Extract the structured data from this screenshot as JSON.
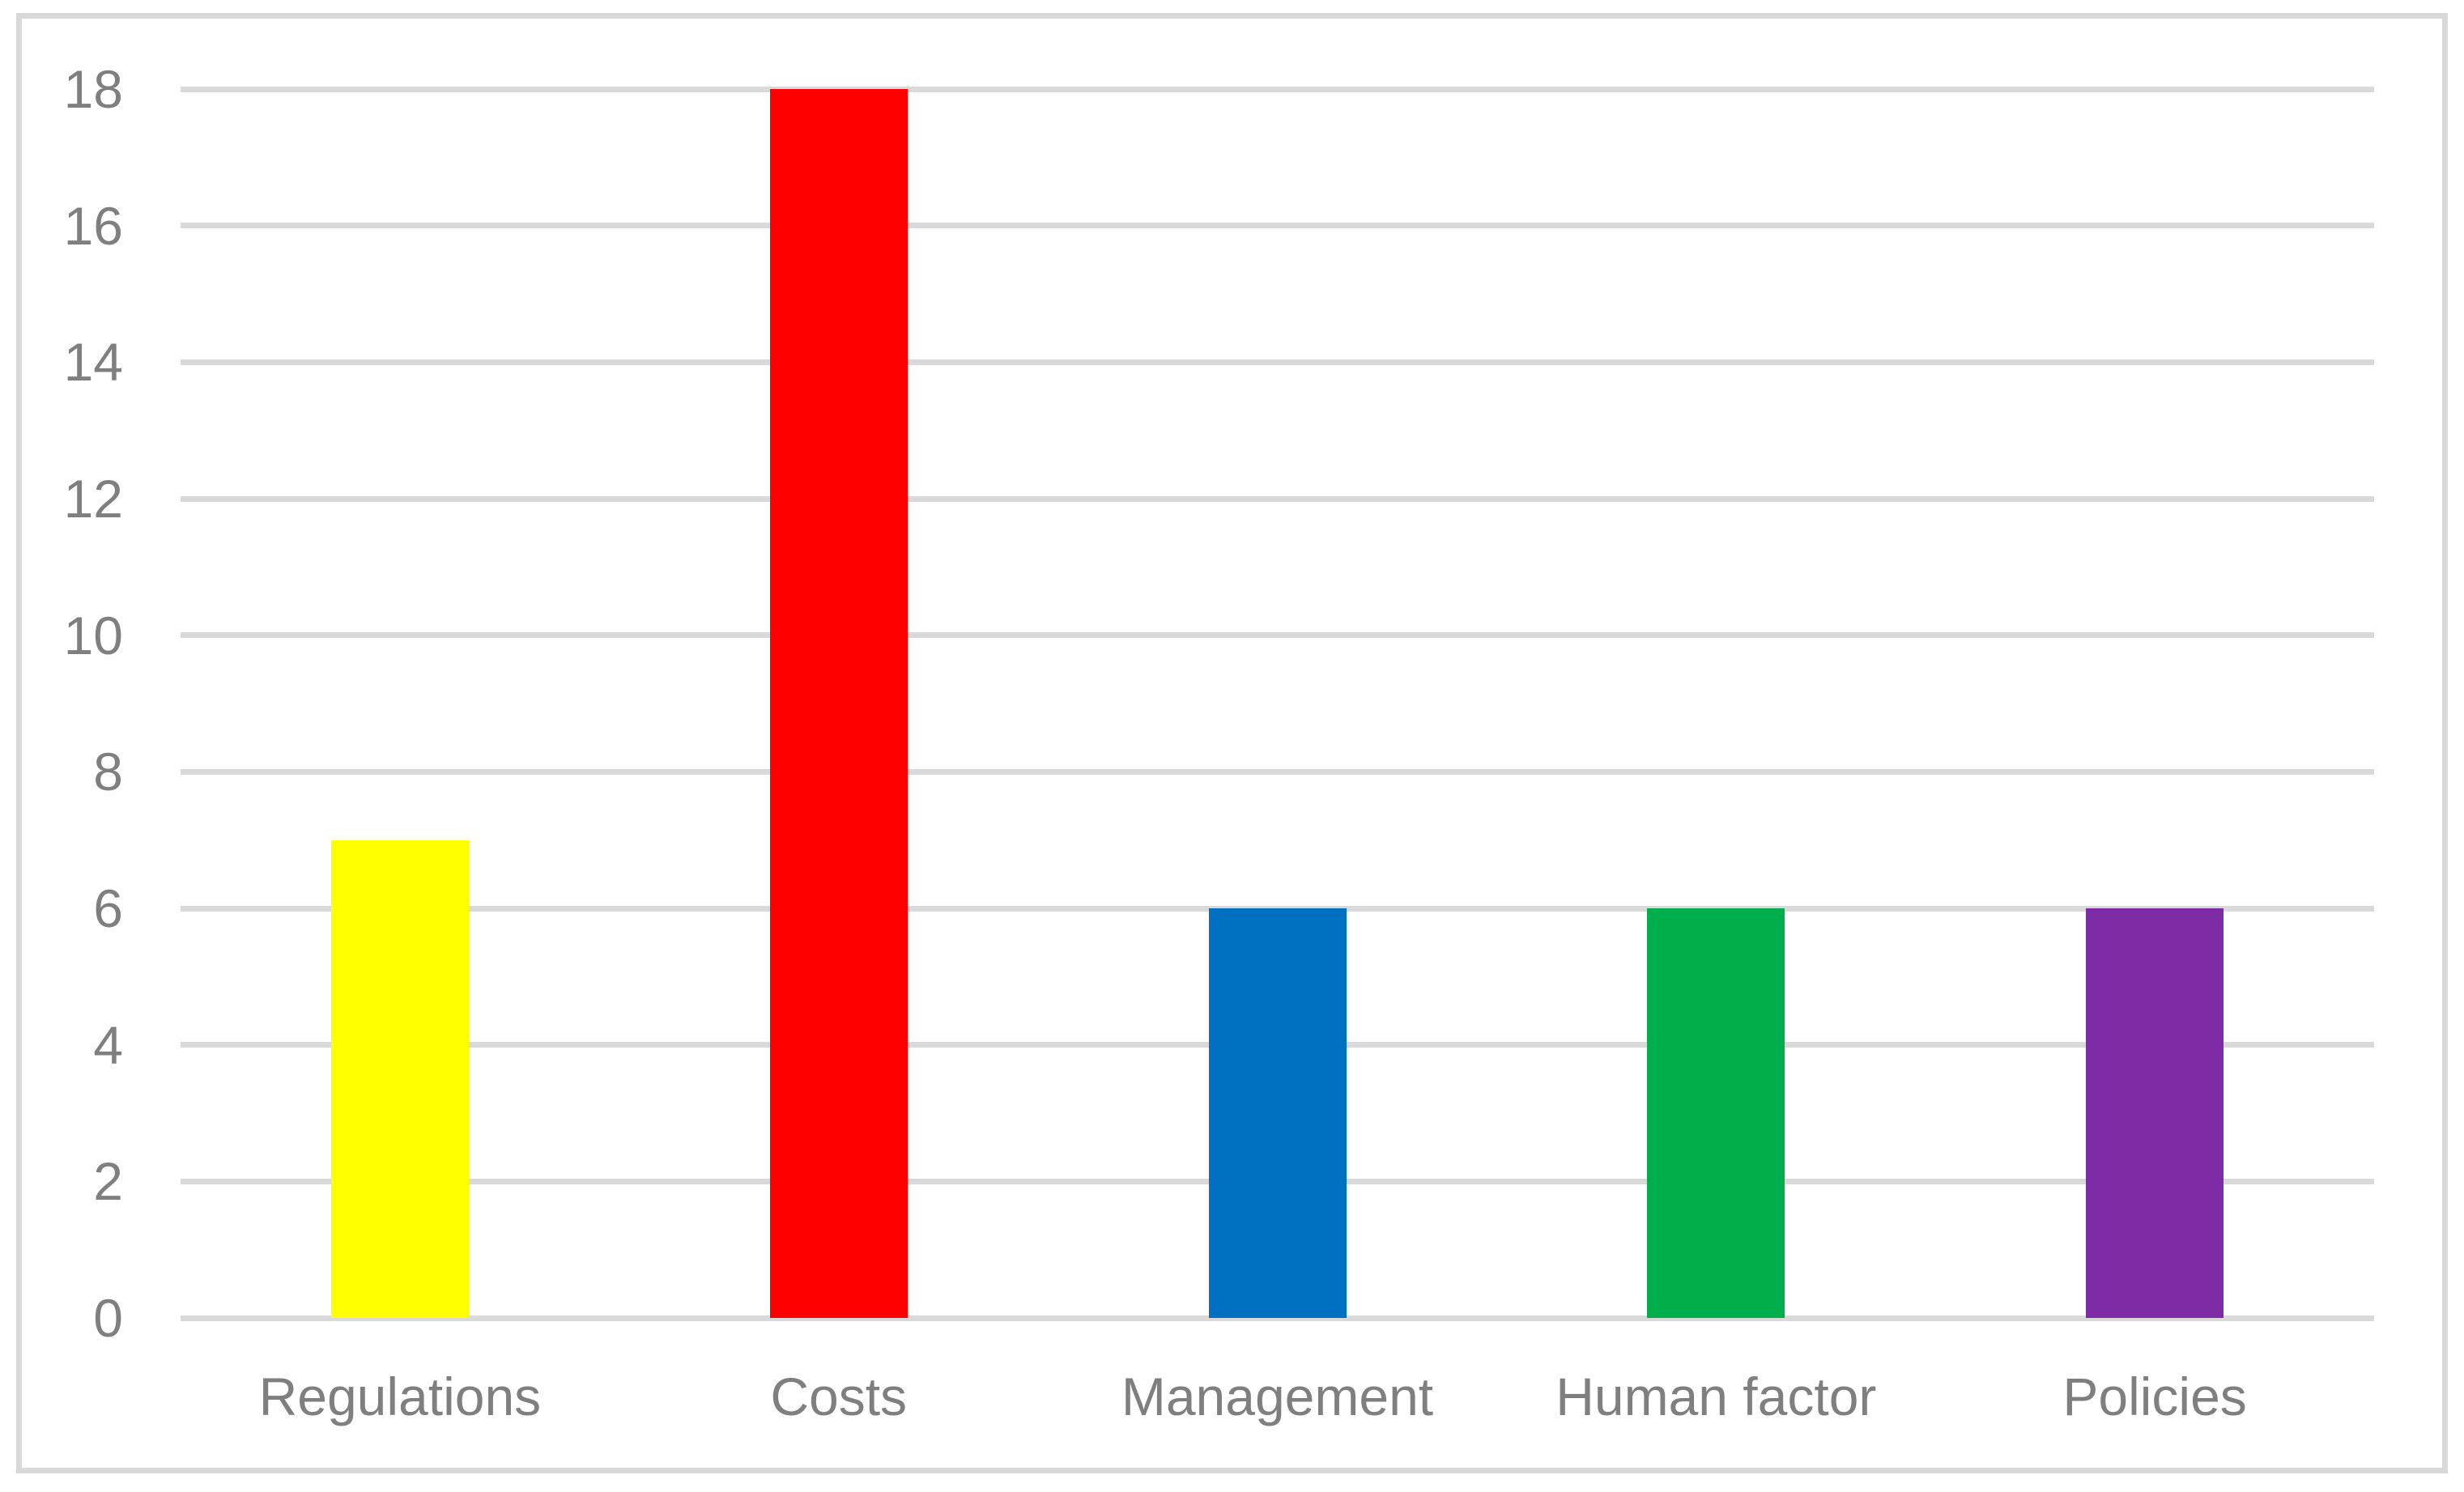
{
  "chart_data": {
    "type": "bar",
    "title": "",
    "xlabel": "",
    "ylabel": "",
    "categories": [
      "Regulations",
      "Costs",
      "Management",
      "Human factor",
      "Policies"
    ],
    "values": [
      7,
      18,
      6,
      6,
      6
    ],
    "bar_colors": [
      "#ffff00",
      "#ff0000",
      "#0070c0",
      "#00ae4b",
      "#7e2ca6"
    ],
    "ylim": [
      0,
      18
    ],
    "yticks": [
      0,
      2,
      4,
      6,
      8,
      10,
      12,
      14,
      16,
      18
    ],
    "grid": true,
    "legend_position": "none",
    "gridline_color": "#d9d9d9",
    "frame_color": "#d9d9d9",
    "tick_label_color": "#7f7f7f",
    "background_color": "#ffffff"
  }
}
